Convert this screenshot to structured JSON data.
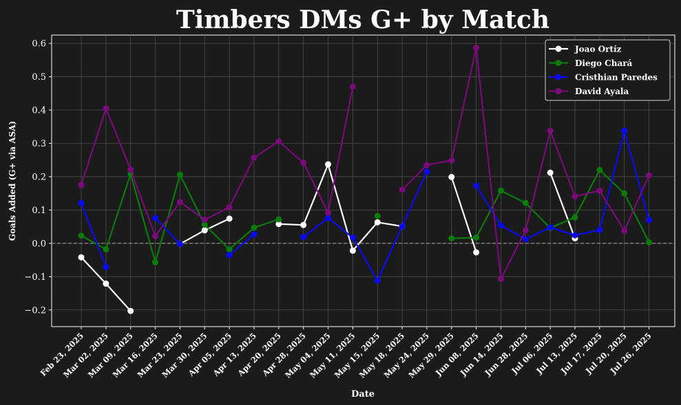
{
  "figure": {
    "background": "#1b1b1b",
    "axes_color": "#ffffff",
    "grid_color": "#5a5a5a",
    "zero_line_color": "#8a8a8a"
  },
  "chart_data": {
    "type": "line",
    "title": "Timbers DMs G+ by Match",
    "xlabel": "Date",
    "ylabel": "Goals Added (G+ via ASA)",
    "ylim": [
      -0.25,
      0.625
    ],
    "yticks": [
      -0.2,
      -0.1,
      0.0,
      0.1,
      0.2,
      0.3,
      0.4,
      0.5,
      0.6
    ],
    "ytick_labels": [
      "−0.2",
      "−0.1",
      "0.0",
      "0.1",
      "0.2",
      "0.3",
      "0.4",
      "0.5",
      "0.6"
    ],
    "grid": true,
    "zero_line": true,
    "legend_position": "top-right",
    "categories": [
      "Feb 23, 2025",
      "Mar 02, 2025",
      "Mar 09, 2025",
      "Mar 16, 2025",
      "Mar 23, 2025",
      "Mar 30, 2025",
      "Apr 05, 2025",
      "Apr 13, 2025",
      "Apr 20, 2025",
      "Apr 28, 2025",
      "May 04, 2025",
      "May 11, 2025",
      "May 15, 2025",
      "May 18, 2025",
      "May 24, 2025",
      "May 29, 2025",
      "Jun 08, 2025",
      "Jun 14, 2025",
      "Jun 28, 2025",
      "Jul 06, 2025",
      "Jul 13, 2025",
      "Jul 17, 2025",
      "Jul 20, 2025",
      "Jul 26, 2025"
    ],
    "series": [
      {
        "name": "Joao Ortíz",
        "color": "#ffffff",
        "values": [
          -0.042,
          -0.121,
          -0.203,
          null,
          -0.002,
          0.039,
          0.074,
          null,
          0.058,
          0.055,
          0.237,
          -0.022,
          0.063,
          0.051,
          null,
          0.199,
          -0.027,
          null,
          null,
          0.212,
          0.015,
          null,
          null,
          null
        ]
      },
      {
        "name": "Diego Chará",
        "color": "#0a7a0a",
        "values": [
          0.023,
          -0.018,
          0.208,
          -0.057,
          0.206,
          0.056,
          -0.018,
          0.047,
          0.072,
          null,
          null,
          null,
          0.082,
          null,
          null,
          0.015,
          0.017,
          0.158,
          0.121,
          0.046,
          0.078,
          0.22,
          0.15,
          0.003
        ]
      },
      {
        "name": "Cristhian Paredes",
        "color": "#0a0af0",
        "values": [
          0.121,
          -0.071,
          null,
          0.076,
          -0.002,
          null,
          -0.035,
          0.027,
          null,
          0.019,
          0.076,
          0.017,
          -0.112,
          0.051,
          0.215,
          null,
          0.173,
          0.054,
          0.012,
          0.048,
          0.024,
          0.04,
          0.338,
          0.07
        ]
      },
      {
        "name": "David Ayala",
        "color": "#7a0a7a",
        "values": [
          0.175,
          0.405,
          0.221,
          0.022,
          0.124,
          0.071,
          0.108,
          0.257,
          0.306,
          0.242,
          0.092,
          0.47,
          null,
          0.161,
          0.235,
          0.249,
          0.587,
          -0.107,
          0.039,
          0.338,
          0.141,
          0.158,
          0.038,
          0.204
        ]
      }
    ]
  }
}
